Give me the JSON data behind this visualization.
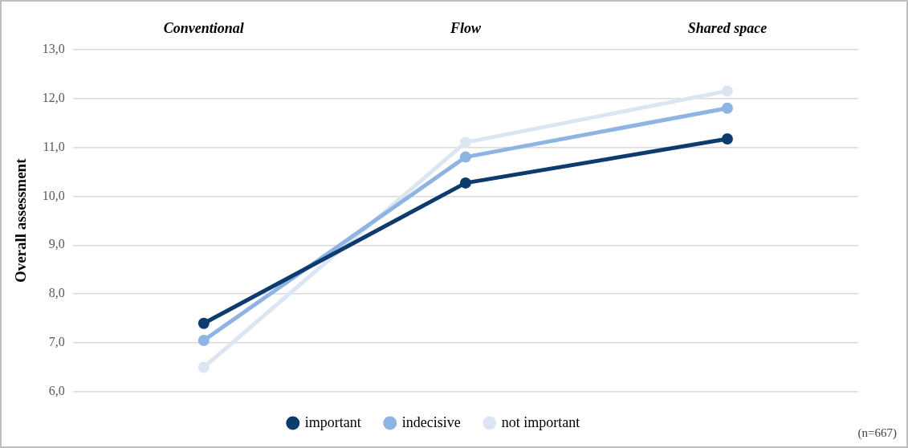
{
  "chart_data": {
    "type": "line",
    "ylabel": "Overall assessment",
    "categories": [
      "Conventional",
      "Flow",
      "Shared space"
    ],
    "series": [
      {
        "name": "important",
        "color": "#0d3b6e",
        "values": [
          7.4,
          10.27,
          11.17
        ]
      },
      {
        "name": "indecisive",
        "color": "#8db4e2",
        "values": [
          7.05,
          10.8,
          11.8
        ]
      },
      {
        "name": "not important",
        "color": "#dce6f2",
        "values": [
          6.5,
          11.1,
          12.15
        ]
      }
    ],
    "ylim": [
      6,
      13
    ],
    "yticks": [
      {
        "value": 6,
        "label": "6,0"
      },
      {
        "value": 7,
        "label": "7,0"
      },
      {
        "value": 8,
        "label": "8,0"
      },
      {
        "value": 9,
        "label": "9,0"
      },
      {
        "value": 10,
        "label": "10,0"
      },
      {
        "value": 11,
        "label": "11,0"
      },
      {
        "value": 12,
        "label": "12,0"
      },
      {
        "value": 13,
        "label": "13,0"
      }
    ],
    "grid": "y",
    "legend": "bottom",
    "marker": "circle",
    "line_style": "solid",
    "annotations": [
      "(n=667)"
    ]
  }
}
